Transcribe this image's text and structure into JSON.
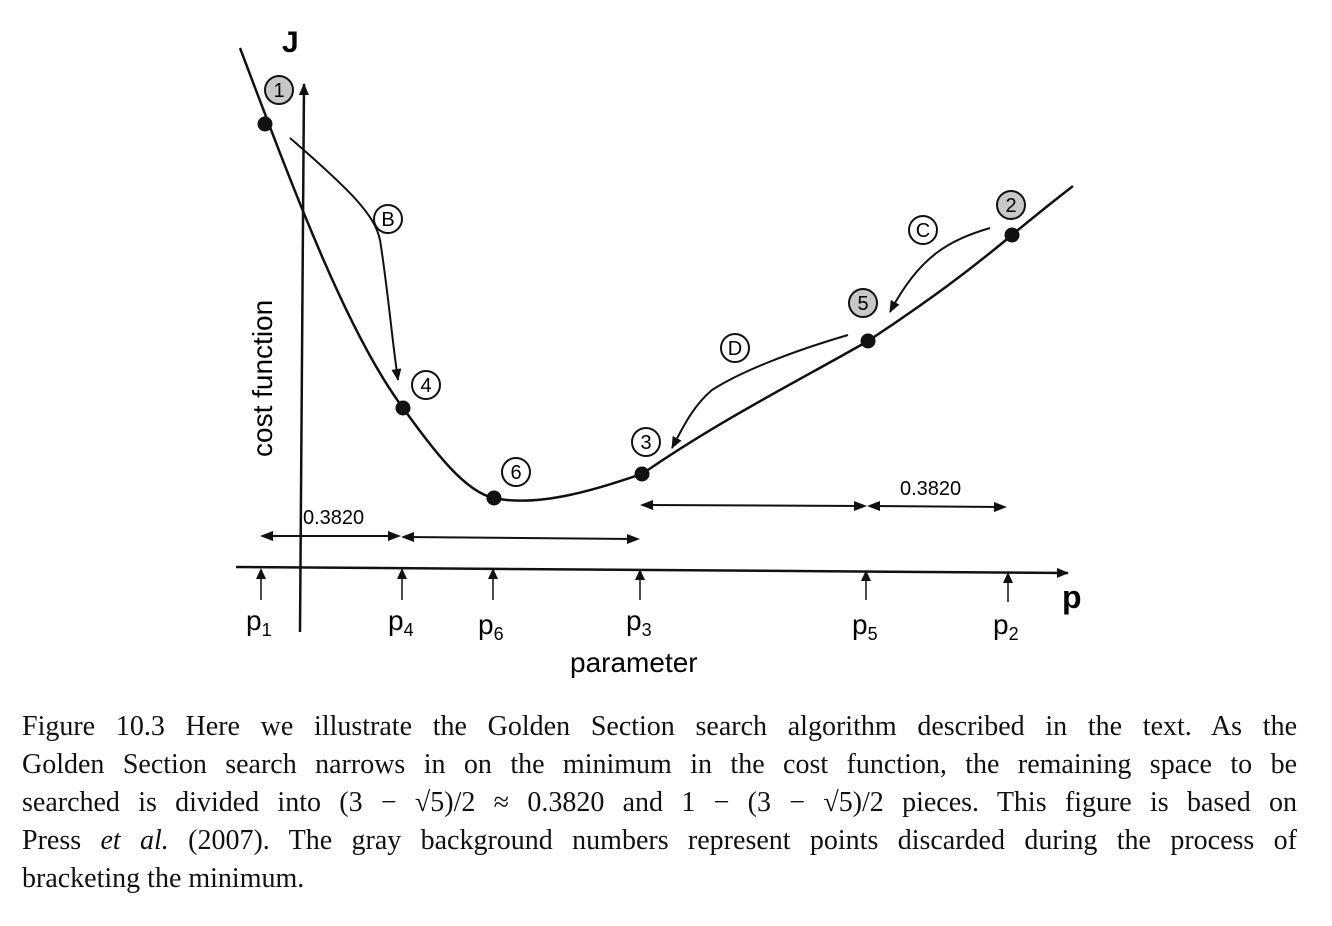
{
  "diagram": {
    "y_axis_letter": "J",
    "x_axis_letter": "p",
    "y_axis_title": "cost function",
    "x_axis_title": "parameter",
    "points": [
      {
        "id": "p1",
        "label": "1",
        "gray": true
      },
      {
        "id": "p2",
        "label": "2",
        "gray": true
      },
      {
        "id": "p3",
        "label": "3",
        "gray": false
      },
      {
        "id": "p4",
        "label": "4",
        "gray": false
      },
      {
        "id": "p5",
        "label": "5",
        "gray": true
      },
      {
        "id": "p6",
        "label": "6",
        "gray": false
      }
    ],
    "steps": [
      {
        "id": "B",
        "label": "B"
      },
      {
        "id": "C",
        "label": "C"
      },
      {
        "id": "D",
        "label": "D"
      }
    ],
    "ticks": [
      {
        "id": "p1",
        "base": "p",
        "sub": "1"
      },
      {
        "id": "p4",
        "base": "p",
        "sub": "4"
      },
      {
        "id": "p6",
        "base": "p",
        "sub": "6"
      },
      {
        "id": "p3",
        "base": "p",
        "sub": "3"
      },
      {
        "id": "p5",
        "base": "p",
        "sub": "5"
      },
      {
        "id": "p2",
        "base": "p",
        "sub": "2"
      }
    ],
    "interval_label_left": "0.3820",
    "interval_label_right": "0.3820"
  },
  "caption": {
    "line1": "Figure 10.3  Here we illustrate the Golden Section search algorithm described in the text. As the",
    "line2": "Golden Section search narrows in on the minimum in the cost function, the remaining space to be",
    "line3": "searched is divided into (3 − √5)/2 ≈ 0.3820 and 1 − (3 − √5)/2 pieces. This figure is based on",
    "line4_a": "Press ",
    "line4_b": "et al.",
    "line4_c": " (2007). The gray background numbers represent points discarded during the process of",
    "line5": "bracketing the minimum."
  }
}
